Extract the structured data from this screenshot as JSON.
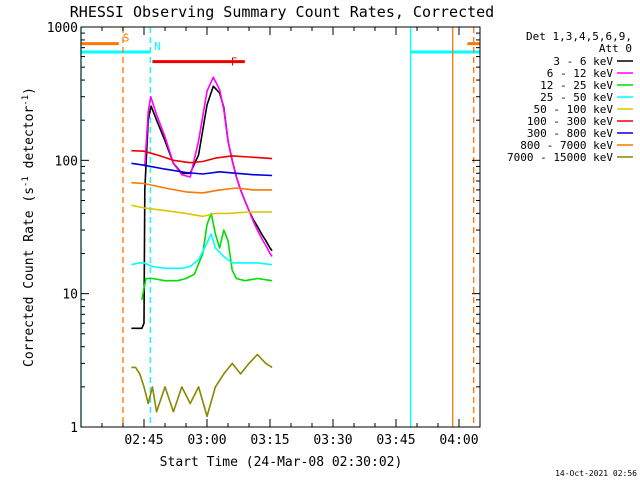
{
  "chart_data": {
    "type": "line",
    "title": "RHESSI Observing Summary Count Rates, Corrected",
    "xlabel": "Start Time (24-Mar-08 02:30:02)",
    "ylabel_main": "Corrected Count Rate (s",
    "ylabel_sup1": "-1",
    "ylabel_mid": " detector",
    "ylabel_sup2": "-1",
    "ylabel_end": ")",
    "footer": "14-Oct-2021 02:56",
    "yscale": "log",
    "ylim": [
      1,
      1000
    ],
    "xlim_minutes": [
      0,
      95
    ],
    "x_ticks": [
      {
        "m": 15,
        "label": "02:45"
      },
      {
        "m": 30,
        "label": "03:00"
      },
      {
        "m": 45,
        "label": "03:15"
      },
      {
        "m": 60,
        "label": "03:30"
      },
      {
        "m": 75,
        "label": "03:45"
      },
      {
        "m": 90,
        "label": "04:00"
      }
    ],
    "y_ticks": [
      {
        "v": 1,
        "label": "1"
      },
      {
        "v": 10,
        "label": "10"
      },
      {
        "v": 100,
        "label": "100"
      },
      {
        "v": 1000,
        "label": "1000"
      }
    ],
    "legend_header": [
      "Det 1,3,4,5,6,9,",
      "Att 0"
    ],
    "series": [
      {
        "name": "3 - 6 keV",
        "color": "#000000",
        "points": [
          [
            12,
            5.5
          ],
          [
            14.5,
            5.5
          ],
          [
            15,
            6
          ],
          [
            15.2,
            60
          ],
          [
            16,
            200
          ],
          [
            16.7,
            255
          ],
          [
            18,
            200
          ],
          [
            20,
            140
          ],
          [
            22,
            95
          ],
          [
            24,
            80
          ],
          [
            26,
            80
          ],
          [
            28,
            110
          ],
          [
            30,
            260
          ],
          [
            31.5,
            360
          ],
          [
            33,
            320
          ],
          [
            34,
            250
          ],
          [
            35,
            140
          ],
          [
            36,
            100
          ],
          [
            37,
            75
          ],
          [
            38,
            60
          ],
          [
            39,
            50
          ],
          [
            40,
            42
          ],
          [
            41,
            36
          ],
          [
            42,
            32
          ],
          [
            43,
            28
          ],
          [
            44,
            25
          ],
          [
            45,
            22
          ],
          [
            45.5,
            21
          ]
        ]
      },
      {
        "name": "6 - 12 keV",
        "color": "#ff00ff",
        "points": [
          [
            15.2,
            90
          ],
          [
            16,
            230
          ],
          [
            16.6,
            300
          ],
          [
            18,
            220
          ],
          [
            20,
            150
          ],
          [
            22,
            95
          ],
          [
            24,
            78
          ],
          [
            26,
            75
          ],
          [
            28,
            140
          ],
          [
            30,
            330
          ],
          [
            31.5,
            420
          ],
          [
            33,
            340
          ],
          [
            34,
            240
          ],
          [
            35,
            140
          ],
          [
            36,
            100
          ],
          [
            37,
            75
          ],
          [
            38,
            60
          ],
          [
            39,
            50
          ],
          [
            40,
            42
          ],
          [
            41,
            35
          ],
          [
            42,
            30
          ],
          [
            43,
            26
          ],
          [
            44,
            23
          ],
          [
            45,
            20
          ],
          [
            45.5,
            19
          ]
        ]
      },
      {
        "name": "12 - 25 keV",
        "color": "#00dd00",
        "points": [
          [
            14.5,
            9
          ],
          [
            15,
            11
          ],
          [
            15.5,
            13
          ],
          [
            17,
            13
          ],
          [
            20,
            12.5
          ],
          [
            23,
            12.5
          ],
          [
            25,
            13
          ],
          [
            27,
            14
          ],
          [
            29,
            20
          ],
          [
            30,
            33
          ],
          [
            31,
            40
          ],
          [
            32,
            28
          ],
          [
            33,
            22
          ],
          [
            34,
            30
          ],
          [
            35,
            25
          ],
          [
            36,
            15
          ],
          [
            37,
            13
          ],
          [
            39,
            12.5
          ],
          [
            42,
            13
          ],
          [
            45.5,
            12.5
          ]
        ]
      },
      {
        "name": "25 - 50 keV",
        "color": "#00ffff",
        "points": [
          [
            12,
            16.5
          ],
          [
            14,
            17
          ],
          [
            15,
            17
          ],
          [
            17,
            16
          ],
          [
            20,
            15.5
          ],
          [
            24,
            15.5
          ],
          [
            26,
            16
          ],
          [
            28,
            18
          ],
          [
            30,
            24
          ],
          [
            31,
            28
          ],
          [
            32,
            22
          ],
          [
            34,
            19
          ],
          [
            36,
            17
          ],
          [
            39,
            17
          ],
          [
            42,
            17
          ],
          [
            45.5,
            16.5
          ]
        ]
      },
      {
        "name": "50 - 100 keV",
        "color": "#d8c800",
        "points": [
          [
            12,
            46
          ],
          [
            15,
            44
          ],
          [
            20,
            42
          ],
          [
            25,
            40
          ],
          [
            29,
            38
          ],
          [
            32,
            40
          ],
          [
            35,
            40
          ],
          [
            40,
            41
          ],
          [
            45.5,
            41
          ]
        ]
      },
      {
        "name": "100 - 300 keV",
        "color": "#ee0000",
        "points": [
          [
            12,
            118
          ],
          [
            15,
            117
          ],
          [
            18,
            110
          ],
          [
            22,
            100
          ],
          [
            26,
            96
          ],
          [
            29,
            98
          ],
          [
            32,
            104
          ],
          [
            36,
            108
          ],
          [
            40,
            106
          ],
          [
            45.5,
            103
          ]
        ]
      },
      {
        "name": "300 - 800 keV",
        "color": "#0000dd",
        "points": [
          [
            12,
            95
          ],
          [
            15,
            92
          ],
          [
            20,
            86
          ],
          [
            25,
            81
          ],
          [
            29,
            79
          ],
          [
            33,
            82
          ],
          [
            37,
            80
          ],
          [
            41,
            78
          ],
          [
            45.5,
            77
          ]
        ]
      },
      {
        "name": "800 - 7000 keV",
        "color": "#ff7700",
        "points": [
          [
            12,
            68
          ],
          [
            15,
            67
          ],
          [
            20,
            62
          ],
          [
            25,
            58
          ],
          [
            29,
            57
          ],
          [
            33,
            60
          ],
          [
            37,
            62
          ],
          [
            41,
            60
          ],
          [
            45.5,
            60
          ]
        ]
      },
      {
        "name": "7000 - 15000 keV",
        "color": "#888800",
        "points": [
          [
            12,
            2.8
          ],
          [
            13,
            2.8
          ],
          [
            14,
            2.5
          ],
          [
            15,
            2
          ],
          [
            16,
            1.5
          ],
          [
            17,
            2
          ],
          [
            18,
            1.3
          ],
          [
            20,
            2
          ],
          [
            22,
            1.3
          ],
          [
            24,
            2
          ],
          [
            26,
            1.5
          ],
          [
            28,
            2
          ],
          [
            30,
            1.2
          ],
          [
            32,
            2
          ],
          [
            34,
            2.5
          ],
          [
            36,
            3
          ],
          [
            38,
            2.5
          ],
          [
            40,
            3
          ],
          [
            42,
            3.5
          ],
          [
            44,
            3
          ],
          [
            45.5,
            2.8
          ]
        ]
      }
    ],
    "flag_lines": [
      {
        "label": "S",
        "color": "#ff7700",
        "points": [
          [
            0,
            750
          ],
          [
            9,
            750
          ]
        ]
      },
      {
        "label": "",
        "color": "#ff7700",
        "points": [
          [
            92,
            750
          ],
          [
            95,
            750
          ]
        ]
      },
      {
        "label": "N",
        "color": "#00ffff",
        "points": [
          [
            0,
            650
          ],
          [
            16.5,
            650
          ]
        ]
      },
      {
        "label": "",
        "color": "#00ffff",
        "points": [
          [
            78.5,
            650
          ],
          [
            95,
            650
          ]
        ]
      },
      {
        "label": "F",
        "color": "#ee0000",
        "points": [
          [
            17,
            550
          ],
          [
            39,
            550
          ]
        ]
      }
    ],
    "vertical_lines": [
      {
        "m": 0,
        "color": "#00ffff",
        "style": "solid"
      },
      {
        "m": 10,
        "color": "#ff7700",
        "style": "dashed"
      },
      {
        "m": 16.5,
        "color": "#00ffff",
        "style": "dashed"
      },
      {
        "m": 78.5,
        "color": "#00ffff",
        "style": "solid"
      },
      {
        "m": 88.5,
        "color": "#ff7700",
        "style": "solid"
      },
      {
        "m": 93.5,
        "color": "#ff7700",
        "style": "dashed"
      }
    ]
  }
}
